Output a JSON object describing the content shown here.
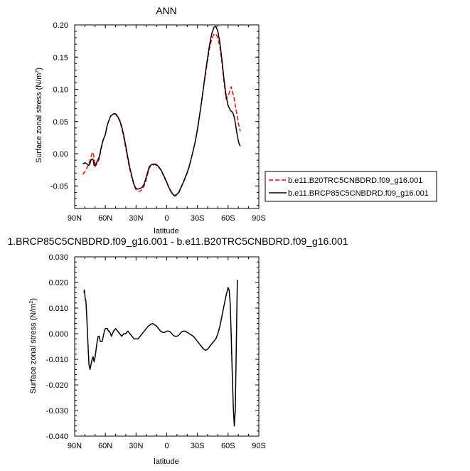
{
  "chart_data": [
    {
      "type": "line",
      "title": "ANN",
      "xlabel": "latitude",
      "ylabel": "Surface zonal stress (N/m",
      "ylabel_sup": "2",
      "ylabel_close": ")",
      "x_ticks": [
        "90N",
        "60N",
        "30N",
        "0",
        "30S",
        "60S",
        "90S"
      ],
      "y_ticks": [
        "0.20",
        "0.15",
        "0.10",
        "0.05",
        "0.00",
        "-0.05"
      ],
      "xlim": [
        90,
        -90
      ],
      "ylim": [
        -0.085,
        0.2
      ],
      "legend_position": "right",
      "series": [
        {
          "name": "b.e11.B20TRC5CNBDRD.f09_g16.001",
          "color": "#ff0000",
          "dash": true,
          "x": [
            82,
            80,
            78,
            76,
            75,
            74,
            73,
            72,
            71,
            70,
            68,
            66,
            64,
            62,
            60,
            58,
            55,
            52,
            50,
            48,
            46,
            44,
            42,
            40,
            38,
            36,
            34,
            32,
            30,
            28,
            26,
            24,
            22,
            20,
            17,
            15,
            12,
            10,
            8,
            6,
            4,
            2,
            0,
            -2,
            -4,
            -6,
            -8,
            -10,
            -12,
            -14,
            -16,
            -18,
            -20,
            -22,
            -24,
            -26,
            -28,
            -30,
            -32,
            -34,
            -36,
            -38,
            -40,
            -42,
            -44,
            -46,
            -48,
            -50,
            -52,
            -54,
            -56,
            -58,
            -60,
            -62,
            -63,
            -64,
            -65,
            -66,
            -67,
            -68,
            -69,
            -70,
            -71,
            -72
          ],
          "y": [
            -0.032,
            -0.028,
            -0.022,
            -0.015,
            -0.01,
            -0.005,
            0.001,
            0.002,
            -0.006,
            -0.02,
            -0.015,
            -0.008,
            0.008,
            0.022,
            0.03,
            0.045,
            0.058,
            0.062,
            0.061,
            0.057,
            0.051,
            0.04,
            0.025,
            0.008,
            -0.01,
            -0.025,
            -0.038,
            -0.049,
            -0.056,
            -0.058,
            -0.058,
            -0.056,
            -0.05,
            -0.04,
            -0.022,
            -0.018,
            -0.017,
            -0.018,
            -0.021,
            -0.025,
            -0.031,
            -0.038,
            -0.045,
            -0.053,
            -0.059,
            -0.064,
            -0.066,
            -0.064,
            -0.06,
            -0.053,
            -0.046,
            -0.038,
            -0.03,
            -0.02,
            -0.008,
            0.006,
            0.02,
            0.038,
            0.058,
            0.08,
            0.103,
            0.125,
            0.146,
            0.165,
            0.178,
            0.185,
            0.186,
            0.18,
            0.165,
            0.14,
            0.11,
            0.085,
            0.09,
            0.098,
            0.104,
            0.098,
            0.092,
            0.085,
            0.075,
            0.066,
            0.058,
            0.048,
            0.04,
            0.035
          ]
        },
        {
          "name": "b.e11.BRCP85C5CNBDRD.f09_g16.001",
          "color": "#000000",
          "dash": false,
          "x": [
            82,
            80,
            78,
            76,
            75,
            74,
            73,
            72,
            71,
            70,
            68,
            66,
            64,
            62,
            60,
            58,
            55,
            52,
            50,
            48,
            46,
            44,
            42,
            40,
            38,
            36,
            34,
            32,
            30,
            28,
            26,
            24,
            22,
            20,
            17,
            15,
            12,
            10,
            8,
            6,
            4,
            2,
            0,
            -2,
            -4,
            -6,
            -8,
            -10,
            -12,
            -14,
            -16,
            -18,
            -20,
            -22,
            -24,
            -26,
            -28,
            -30,
            -32,
            -34,
            -36,
            -38,
            -40,
            -42,
            -44,
            -46,
            -48,
            -50,
            -52,
            -54,
            -56,
            -58,
            -60,
            -62,
            -63,
            -64,
            -65,
            -66,
            -67,
            -68,
            -69,
            -70,
            -71,
            -72
          ],
          "y": [
            -0.016,
            -0.014,
            -0.016,
            -0.018,
            -0.015,
            -0.01,
            -0.008,
            -0.009,
            -0.018,
            -0.018,
            -0.012,
            -0.005,
            0.01,
            0.022,
            0.03,
            0.045,
            0.058,
            0.062,
            0.062,
            0.058,
            0.052,
            0.042,
            0.028,
            0.012,
            -0.006,
            -0.022,
            -0.036,
            -0.048,
            -0.054,
            -0.055,
            -0.054,
            -0.052,
            -0.047,
            -0.036,
            -0.02,
            -0.017,
            -0.016,
            -0.017,
            -0.02,
            -0.024,
            -0.03,
            -0.037,
            -0.044,
            -0.052,
            -0.058,
            -0.063,
            -0.065,
            -0.063,
            -0.059,
            -0.052,
            -0.045,
            -0.037,
            -0.029,
            -0.019,
            -0.007,
            0.006,
            0.02,
            0.038,
            0.058,
            0.08,
            0.104,
            0.128,
            0.15,
            0.17,
            0.186,
            0.196,
            0.198,
            0.19,
            0.172,
            0.145,
            0.115,
            0.09,
            0.075,
            0.068,
            0.066,
            0.065,
            0.062,
            0.056,
            0.048,
            0.038,
            0.028,
            0.02,
            0.014,
            0.012
          ]
        }
      ]
    },
    {
      "type": "line",
      "title": "1.BRCP85C5CNBDRD.f09_g16.001 - b.e11.B20TRC5CNBDRD.f09_g16.001",
      "xlabel": "latitude",
      "ylabel": "Surface zonal stress (N/m",
      "ylabel_sup": "2",
      "ylabel_close": ")",
      "x_ticks": [
        "90N",
        "60N",
        "30N",
        "0",
        "30S",
        "60S",
        "90S"
      ],
      "y_ticks": [
        "0.030",
        "0.020",
        "0.010",
        "0.000",
        "-0.010",
        "-0.020",
        "-0.030",
        "-0.040"
      ],
      "xlim": [
        90,
        -90
      ],
      "ylim": [
        -0.04,
        0.03
      ],
      "series": [
        {
          "color": "#000000",
          "x": [
            81,
            80.5,
            80,
            79.5,
            79,
            78,
            77,
            76,
            75,
            74,
            73,
            72,
            71,
            70,
            69,
            68,
            67,
            66,
            65,
            64,
            63,
            62,
            61,
            60,
            59,
            58,
            57,
            56,
            55,
            54,
            53,
            52,
            50,
            48,
            46,
            44,
            42,
            40,
            38,
            36,
            34,
            32,
            30,
            28,
            26,
            24,
            22,
            20,
            18,
            16,
            14,
            12,
            10,
            8,
            6,
            4,
            2,
            0,
            -2,
            -4,
            -6,
            -8,
            -10,
            -12,
            -14,
            -16,
            -18,
            -20,
            -22,
            -24,
            -26,
            -28,
            -30,
            -32,
            -34,
            -36,
            -38,
            -40,
            -42,
            -44,
            -46,
            -48,
            -50,
            -52,
            -54,
            -56,
            -58,
            -60,
            -61,
            -62,
            -63,
            -64,
            -65,
            -66,
            -67,
            -68,
            -69
          ],
          "y": [
            0.016,
            0.017,
            0.015,
            0.013,
            0.013,
            0.005,
            -0.004,
            -0.012,
            -0.014,
            -0.012,
            -0.01,
            -0.009,
            -0.011,
            -0.009,
            -0.006,
            -0.003,
            -0.001,
            -0.001,
            -0.003,
            -0.003,
            -0.003,
            -0.001,
            0.001,
            0.002,
            0.002,
            0.002,
            0.001,
            0.001,
            0.0,
            -0.001,
            0.0,
            0.001,
            0.002,
            0.001,
            0.0,
            -0.001,
            0.0,
            0.0,
            0.001,
            0.0,
            -0.001,
            -0.002,
            -0.002,
            -0.002,
            -0.001,
            0.0,
            0.001,
            0.002,
            0.003,
            0.0035,
            0.004,
            0.0035,
            0.003,
            0.002,
            0.001,
            0.0005,
            0.0005,
            0.001,
            0.001,
            0.0005,
            -0.0005,
            -0.001,
            -0.001,
            -0.0005,
            0.0005,
            0.001,
            0.001,
            0.0005,
            0.0,
            -0.0005,
            -0.001,
            -0.002,
            -0.003,
            -0.004,
            -0.005,
            -0.006,
            -0.0065,
            -0.006,
            -0.005,
            -0.004,
            -0.003,
            -0.002,
            0.0,
            0.003,
            0.007,
            0.011,
            0.015,
            0.018,
            0.017,
            0.012,
            0.0,
            -0.015,
            -0.028,
            -0.036,
            -0.03,
            -0.005,
            0.021
          ]
        }
      ]
    }
  ]
}
